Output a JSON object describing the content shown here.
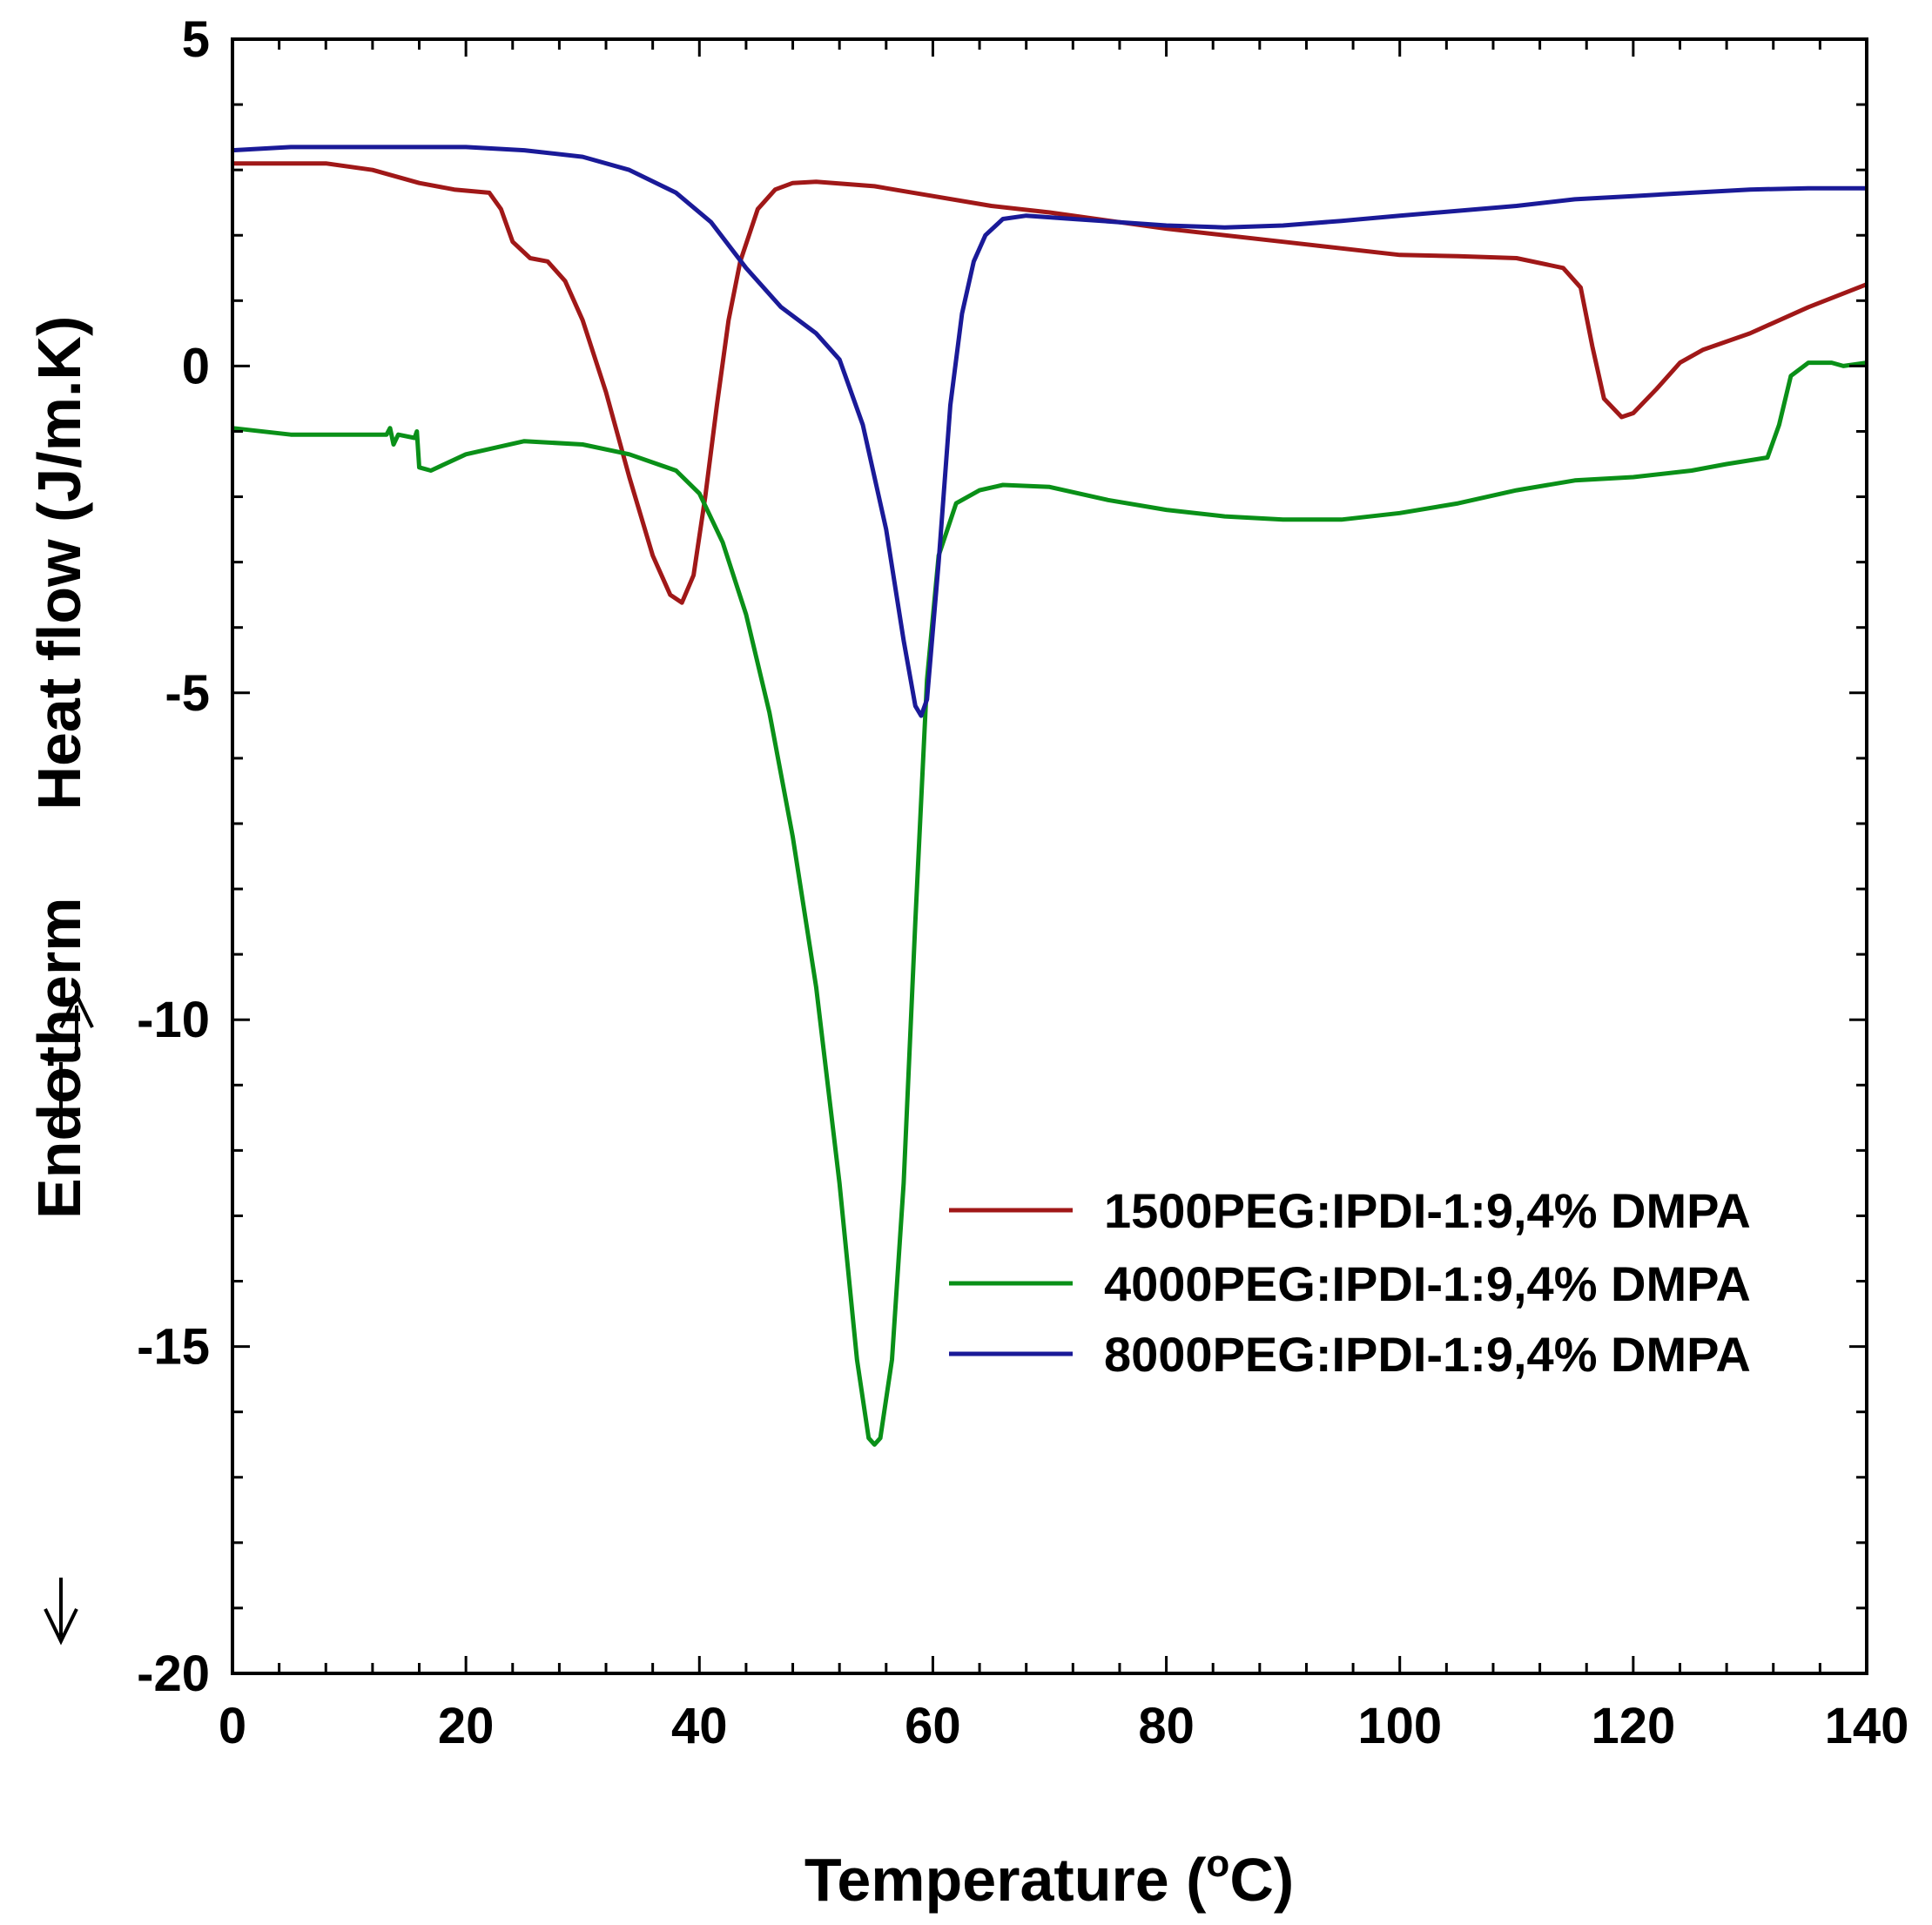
{
  "chart_data": {
    "type": "line",
    "title": "",
    "xlabel": "Temperature (",
    "xlabel_unit": "oC)",
    "ylabel": "Heat flow (J/m.K)",
    "ylabel_prefix": "Endotherm",
    "xlim": [
      0,
      140
    ],
    "ylim": [
      -20,
      5
    ],
    "x_ticks": [
      0,
      20,
      40,
      60,
      80,
      100,
      120,
      140
    ],
    "y_ticks": [
      5,
      0,
      -5,
      -10,
      -15,
      -20
    ],
    "x_tick_labels": [
      "0",
      "20",
      "40",
      "60",
      "80",
      "100",
      "120",
      "140"
    ],
    "y_tick_labels": [
      "5",
      "0",
      "-5",
      "-10",
      "-15",
      "-20"
    ],
    "grid": false,
    "legend_position": "lower-right",
    "series": [
      {
        "name": "1500PEG:IPDI-1:9,4% DMPA",
        "color": "#a01818",
        "points": [
          [
            0,
            3.1
          ],
          [
            8,
            3.1
          ],
          [
            12,
            3.0
          ],
          [
            16,
            2.8
          ],
          [
            19,
            2.7
          ],
          [
            22,
            2.65
          ],
          [
            23,
            2.4
          ],
          [
            24,
            1.9
          ],
          [
            25.5,
            1.65
          ],
          [
            27,
            1.6
          ],
          [
            28.5,
            1.3
          ],
          [
            30,
            0.7
          ],
          [
            32,
            -0.4
          ],
          [
            34,
            -1.7
          ],
          [
            36,
            -2.9
          ],
          [
            37.5,
            -3.5
          ],
          [
            38.5,
            -3.62
          ],
          [
            39.5,
            -3.2
          ],
          [
            40.5,
            -2.0
          ],
          [
            41.5,
            -0.6
          ],
          [
            42.5,
            0.7
          ],
          [
            43.5,
            1.6
          ],
          [
            45,
            2.4
          ],
          [
            46.5,
            2.7
          ],
          [
            48,
            2.8
          ],
          [
            50,
            2.82
          ],
          [
            55,
            2.75
          ],
          [
            60,
            2.6
          ],
          [
            65,
            2.45
          ],
          [
            70,
            2.35
          ],
          [
            80,
            2.1
          ],
          [
            90,
            1.9
          ],
          [
            100,
            1.7
          ],
          [
            105,
            1.68
          ],
          [
            110,
            1.65
          ],
          [
            114,
            1.5
          ],
          [
            115.5,
            1.2
          ],
          [
            116.5,
            0.3
          ],
          [
            117.5,
            -0.5
          ],
          [
            119,
            -0.78
          ],
          [
            120,
            -0.72
          ],
          [
            122,
            -0.35
          ],
          [
            124,
            0.05
          ],
          [
            126,
            0.25
          ],
          [
            130,
            0.5
          ],
          [
            135,
            0.9
          ],
          [
            140,
            1.25
          ]
        ]
      },
      {
        "name": "4000PEG:IPDI-1:9,4% DMPA",
        "color": "#0a9018",
        "points": [
          [
            0,
            -0.95
          ],
          [
            5,
            -1.05
          ],
          [
            10,
            -1.05
          ],
          [
            13.2,
            -1.05
          ],
          [
            13.5,
            -0.95
          ],
          [
            13.8,
            -1.2
          ],
          [
            14.2,
            -1.05
          ],
          [
            15.6,
            -1.1
          ],
          [
            15.8,
            -1.0
          ],
          [
            16,
            -1.55
          ],
          [
            17,
            -1.6
          ],
          [
            20,
            -1.35
          ],
          [
            25,
            -1.15
          ],
          [
            30,
            -1.2
          ],
          [
            34,
            -1.35
          ],
          [
            38,
            -1.6
          ],
          [
            40,
            -1.95
          ],
          [
            42,
            -2.7
          ],
          [
            44,
            -3.8
          ],
          [
            46,
            -5.3
          ],
          [
            48,
            -7.2
          ],
          [
            50,
            -9.5
          ],
          [
            52,
            -12.5
          ],
          [
            53.5,
            -15.2
          ],
          [
            54.5,
            -16.4
          ],
          [
            55,
            -16.5
          ],
          [
            55.5,
            -16.4
          ],
          [
            56.5,
            -15.2
          ],
          [
            57.5,
            -12.5
          ],
          [
            58.5,
            -8.5
          ],
          [
            59.5,
            -4.8
          ],
          [
            60.5,
            -2.9
          ],
          [
            62,
            -2.1
          ],
          [
            64,
            -1.9
          ],
          [
            66,
            -1.82
          ],
          [
            70,
            -1.85
          ],
          [
            75,
            -2.05
          ],
          [
            80,
            -2.2
          ],
          [
            85,
            -2.3
          ],
          [
            90,
            -2.35
          ],
          [
            95,
            -2.35
          ],
          [
            100,
            -2.25
          ],
          [
            105,
            -2.1
          ],
          [
            110,
            -1.9
          ],
          [
            115,
            -1.75
          ],
          [
            120,
            -1.7
          ],
          [
            125,
            -1.6
          ],
          [
            128,
            -1.5
          ],
          [
            131.5,
            -1.4
          ],
          [
            132.5,
            -0.9
          ],
          [
            133.5,
            -0.15
          ],
          [
            135,
            0.05
          ],
          [
            137,
            0.05
          ],
          [
            138,
            0.0
          ],
          [
            140,
            0.05
          ]
        ]
      },
      {
        "name": "8000PEG:IPDI-1:9,4% DMPA",
        "color": "#1a1a98",
        "points": [
          [
            0,
            3.3
          ],
          [
            5,
            3.35
          ],
          [
            10,
            3.35
          ],
          [
            20,
            3.35
          ],
          [
            25,
            3.3
          ],
          [
            30,
            3.2
          ],
          [
            34,
            3.0
          ],
          [
            38,
            2.65
          ],
          [
            41,
            2.2
          ],
          [
            44,
            1.5
          ],
          [
            47,
            0.9
          ],
          [
            50,
            0.5
          ],
          [
            52,
            0.1
          ],
          [
            54,
            -0.9
          ],
          [
            56,
            -2.5
          ],
          [
            57.5,
            -4.2
          ],
          [
            58.5,
            -5.2
          ],
          [
            59,
            -5.35
          ],
          [
            59.5,
            -5.1
          ],
          [
            60.5,
            -3.0
          ],
          [
            61.5,
            -0.6
          ],
          [
            62.5,
            0.8
          ],
          [
            63.5,
            1.6
          ],
          [
            64.5,
            2.0
          ],
          [
            66,
            2.25
          ],
          [
            68,
            2.3
          ],
          [
            72,
            2.25
          ],
          [
            76,
            2.2
          ],
          [
            80,
            2.15
          ],
          [
            85,
            2.12
          ],
          [
            90,
            2.15
          ],
          [
            95,
            2.22
          ],
          [
            100,
            2.3
          ],
          [
            110,
            2.45
          ],
          [
            115,
            2.55
          ],
          [
            120,
            2.6
          ],
          [
            125,
            2.65
          ],
          [
            130,
            2.7
          ],
          [
            135,
            2.72
          ],
          [
            140,
            2.72
          ]
        ]
      }
    ]
  }
}
